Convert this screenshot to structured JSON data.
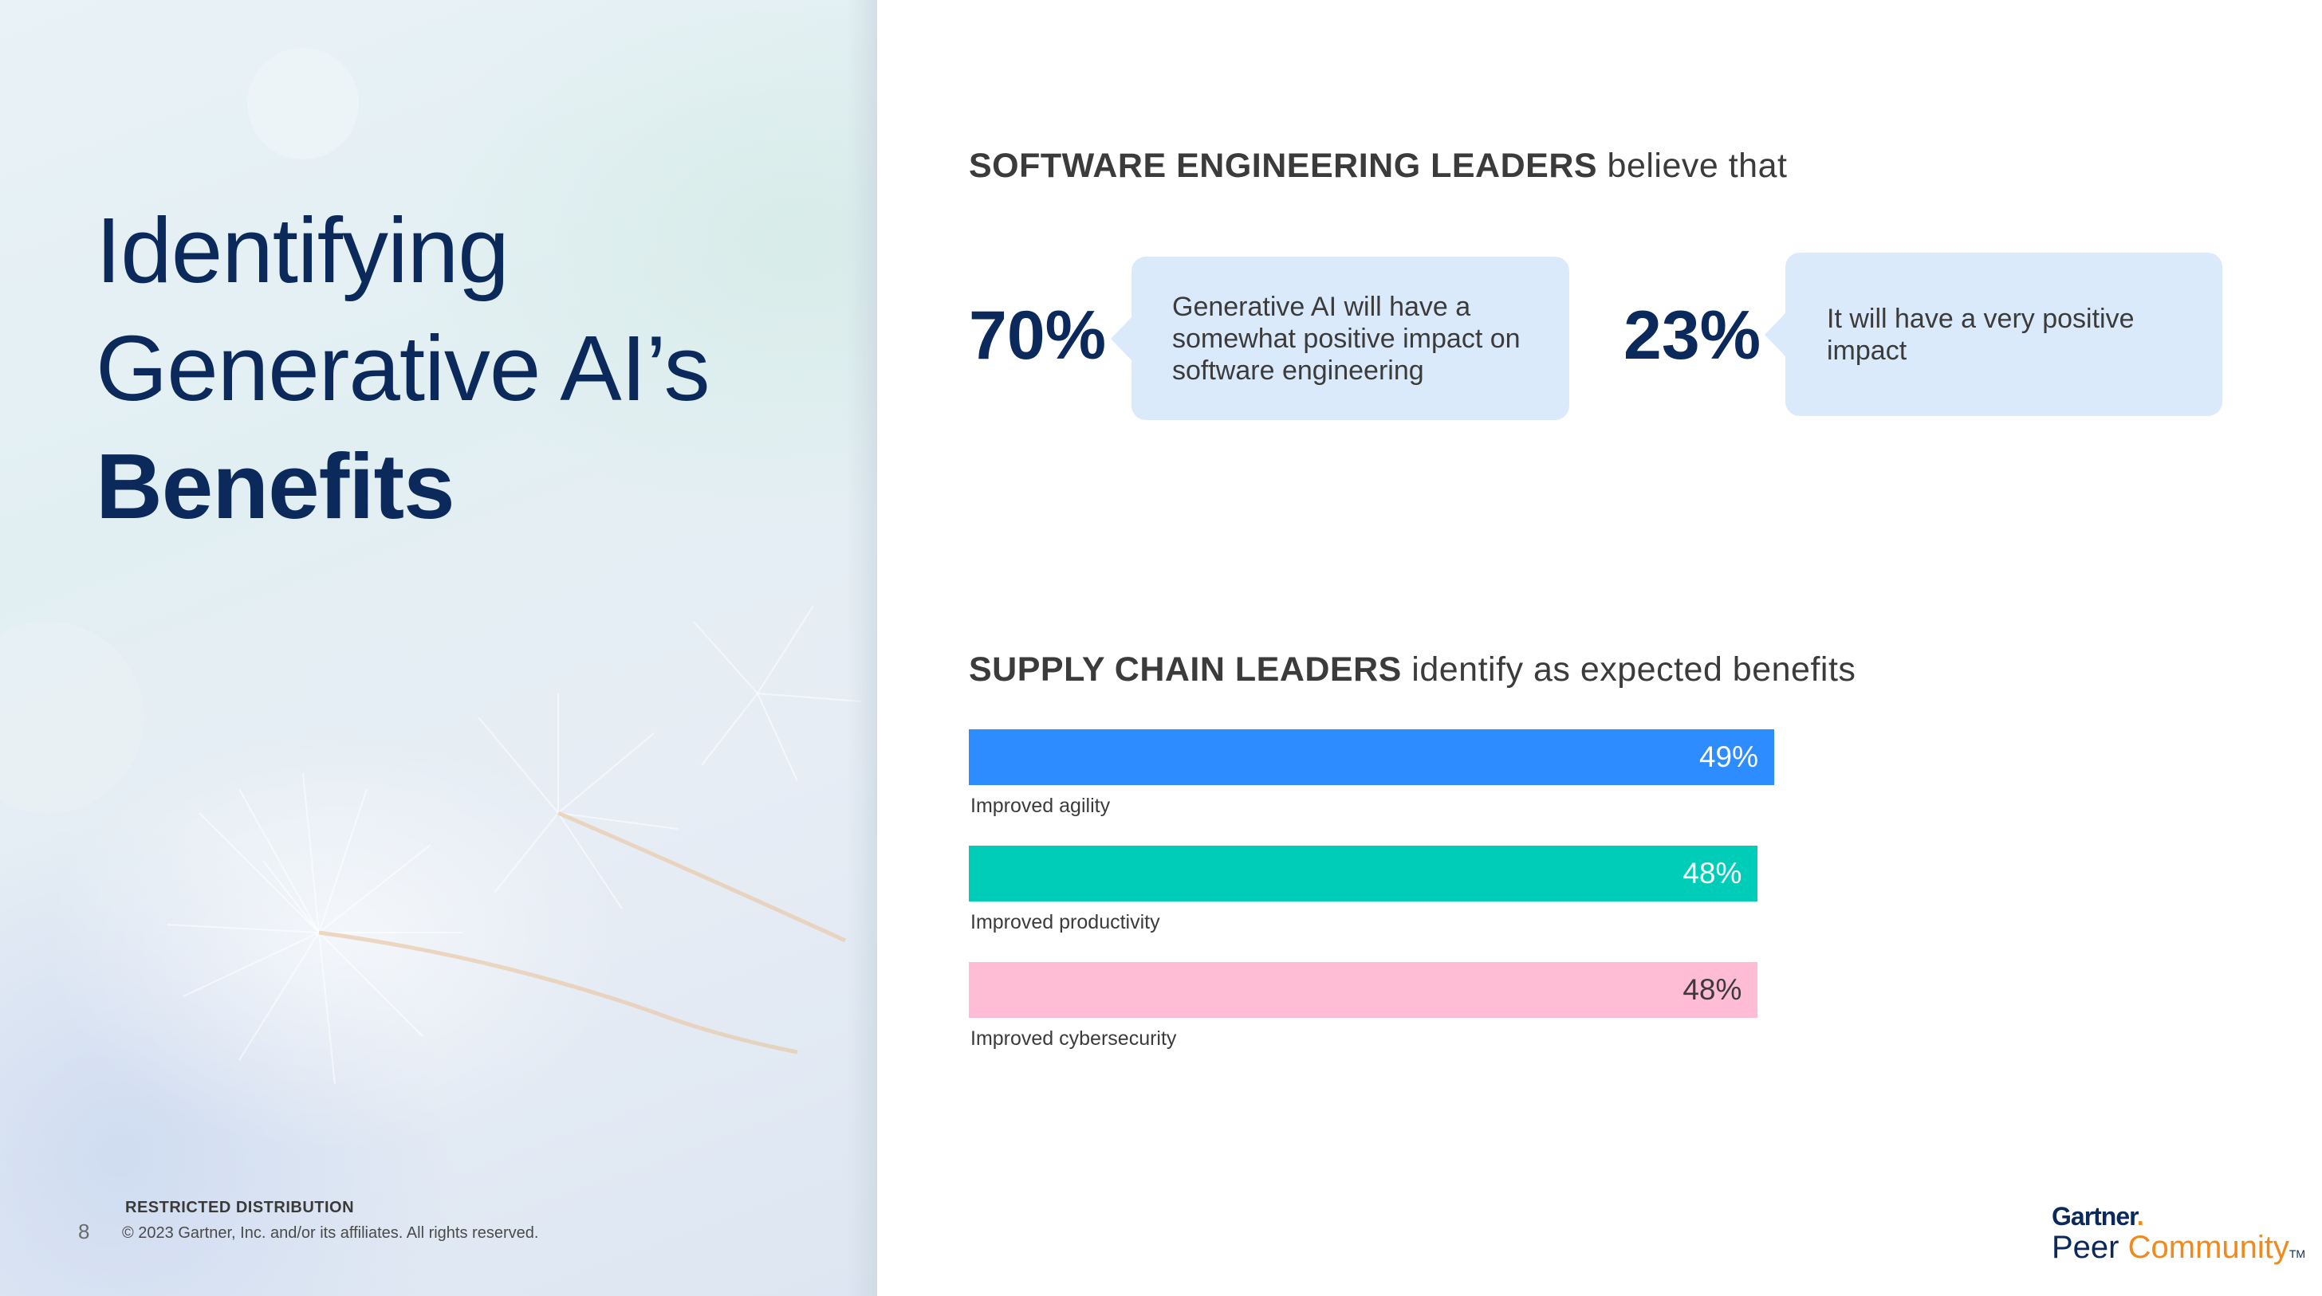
{
  "slide": {
    "title_line1": "Identifying",
    "title_line2": "Generative AI’s",
    "title_line3": "Benefits",
    "page_number": "8",
    "restricted": "RESTRICTED DISTRIBUTION",
    "copyright": "© 2023 Gartner, Inc. and/or its affiliates. All rights reserved.",
    "logo_top": "Gartner",
    "logo_top_dot": ".",
    "logo_peer": "Peer ",
    "logo_community": "Community",
    "logo_tm": "TM"
  },
  "software_section": {
    "heading_bold": "SOFTWARE ENGINEERING LEADERS",
    "heading_rest": " believe that",
    "stat1_value": "70%",
    "stat1_text": "Generative AI will have a somewhat positive impact on software engineering",
    "stat2_value": "23%",
    "stat2_text": "It will have a very positive impact"
  },
  "supply_section": {
    "heading_bold": "SUPPLY CHAIN LEADERS",
    "heading_rest": " identify as expected benefits"
  },
  "chart_data": {
    "type": "bar",
    "orientation": "horizontal",
    "categories": [
      "Improved agility",
      "Improved productivity",
      "Improved cybersecurity"
    ],
    "values": [
      49,
      48,
      48
    ],
    "value_labels": [
      "49%",
      "48%",
      "48%"
    ],
    "colors": [
      "#2d8cff",
      "#00cdb8",
      "#ffbcd4"
    ],
    "title": "SUPPLY CHAIN LEADERS identify as expected benefits",
    "xlabel": "",
    "ylabel": "",
    "grid": false
  }
}
